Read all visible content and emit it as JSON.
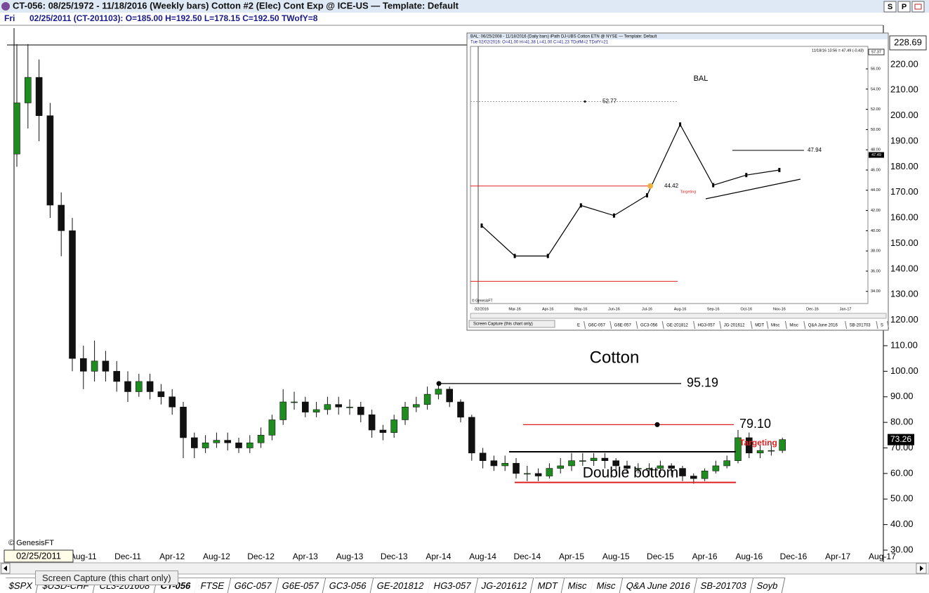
{
  "window": {
    "title": "CT-056:  08/25/1972 - 11/18/2016  (Weekly bars)  Cotton #2 (Elec) Cont Exp @ ICE-US  —  Template: Default",
    "buttons": [
      "S",
      "P"
    ]
  },
  "info_line": {
    "day": "Fri",
    "text": "02/25/2011 (CT-201103):  O=185.00  H=192.50  L=178.15  C=192.50  TWofY=8"
  },
  "chart_data": [
    {
      "type": "candlestick",
      "x": [
        "Feb-11",
        "Mar-11",
        "Apr-11",
        "May-11",
        "Jun-11",
        "Jul-11",
        "Aug-11",
        "Sep-11",
        "Oct-11",
        "Nov-11",
        "Dec-11",
        "Jan-12",
        "Feb-12",
        "Mar-12",
        "Apr-12",
        "May-12",
        "Jun-12",
        "Jul-12",
        "Aug-12",
        "Sep-12",
        "Oct-12",
        "Nov-12",
        "Dec-12",
        "Jan-13",
        "Feb-13",
        "Mar-13",
        "Apr-13",
        "May-13",
        "Jun-13",
        "Jul-13",
        "Aug-13",
        "Sep-13",
        "Oct-13",
        "Nov-13",
        "Dec-13",
        "Jan-14",
        "Feb-14",
        "Mar-14",
        "Apr-14",
        "May-14",
        "Jun-14",
        "Jul-14",
        "Aug-14",
        "Sep-14",
        "Oct-14",
        "Nov-14",
        "Dec-14",
        "Jan-15",
        "Feb-15",
        "Mar-15",
        "Apr-15",
        "May-15",
        "Jun-15",
        "Jul-15",
        "Aug-15",
        "Sep-15",
        "Oct-15",
        "Nov-15",
        "Dec-15",
        "Jan-16",
        "Feb-16",
        "Mar-16",
        "Apr-16",
        "May-16",
        "Jun-16",
        "Jul-16",
        "Aug-16",
        "Sep-16",
        "Oct-16",
        "Nov-16"
      ],
      "open": [
        185,
        205,
        215,
        200,
        165,
        155,
        105,
        100,
        104,
        100,
        96,
        92,
        96,
        92,
        90,
        86,
        74,
        70,
        72,
        73,
        72,
        70,
        72,
        75,
        81,
        88,
        88,
        84,
        85,
        87,
        86,
        86,
        83,
        77,
        76,
        81,
        86,
        87,
        91,
        93,
        88,
        82,
        68,
        65,
        63,
        64,
        60,
        60,
        59,
        62,
        63,
        65,
        65,
        66,
        65,
        63,
        62,
        62,
        62,
        63,
        62,
        59,
        58,
        61,
        63,
        65,
        74,
        68,
        69,
        69
      ],
      "high": [
        228,
        228,
        222,
        205,
        170,
        160,
        110,
        112,
        108,
        104,
        100,
        99,
        99,
        95,
        93,
        88,
        76,
        75,
        76,
        76,
        74,
        75,
        78,
        83,
        93,
        92,
        90,
        88,
        90,
        90,
        89,
        88,
        85,
        79,
        83,
        88,
        90,
        94,
        95.19,
        94,
        89,
        83,
        70,
        67,
        67,
        66,
        63,
        62,
        64,
        66,
        68,
        68,
        68,
        68,
        66,
        65,
        64,
        64,
        65,
        64,
        63,
        60,
        62,
        65,
        67,
        77,
        76,
        71,
        71,
        74
      ],
      "low": [
        180,
        195,
        190,
        160,
        145,
        100,
        93,
        96,
        96,
        92,
        88,
        90,
        89,
        87,
        83,
        66,
        66,
        68,
        70,
        69,
        68,
        68,
        70,
        73,
        79,
        85,
        82,
        82,
        83,
        83,
        83,
        80,
        74,
        73,
        74,
        79,
        84,
        85,
        89,
        86,
        80,
        65,
        62,
        61,
        61,
        58,
        57,
        57,
        58,
        60,
        61,
        63,
        63,
        62,
        60,
        60,
        60,
        59,
        60,
        59,
        57,
        56,
        57,
        60,
        62,
        64,
        66,
        66,
        67,
        68
      ],
      "close": [
        205,
        215,
        200,
        165,
        155,
        105,
        100,
        104,
        100,
        96,
        92,
        96,
        92,
        90,
        86,
        74,
        70,
        72,
        73,
        72,
        70,
        72,
        75,
        81,
        88,
        88,
        84,
        85,
        87,
        86,
        86,
        83,
        77,
        76,
        81,
        86,
        87,
        91,
        93,
        88,
        82,
        68,
        65,
        63,
        64,
        60,
        60,
        59,
        62,
        63,
        65,
        65,
        66,
        65,
        63,
        62,
        62,
        62,
        63,
        62,
        59,
        58,
        61,
        63,
        65,
        74,
        68,
        69,
        69,
        73.26
      ],
      "up_color": "#1e8c1e",
      "down_color": "#111111",
      "ylim": [
        30,
        234
      ],
      "yticks": [
        {
          "value": 30,
          "label": "30.00"
        },
        {
          "value": 40,
          "label": "40.00"
        },
        {
          "value": 50,
          "label": "50.00"
        },
        {
          "value": 60,
          "label": "60.00"
        },
        {
          "value": 70,
          "label": "70.00"
        },
        {
          "value": 80,
          "label": "80.00"
        },
        {
          "value": 90,
          "label": "90.00"
        },
        {
          "value": 100,
          "label": "100.00"
        },
        {
          "value": 110,
          "label": "110.00"
        },
        {
          "value": 120,
          "label": "120.00"
        },
        {
          "value": 130,
          "label": "130.00"
        },
        {
          "value": 140,
          "label": "140.00"
        },
        {
          "value": 150,
          "label": "150.00"
        },
        {
          "value": 160,
          "label": "160.00"
        },
        {
          "value": 170,
          "label": "170.00"
        },
        {
          "value": 180,
          "label": "180.00"
        },
        {
          "value": 190,
          "label": "190.00"
        },
        {
          "value": 200,
          "label": "200.00"
        },
        {
          "value": 210,
          "label": "210.00"
        },
        {
          "value": 220,
          "label": "220.00"
        }
      ],
      "xticks": [
        "Aug-11",
        "Dec-11",
        "Apr-12",
        "Aug-12",
        "Dec-12",
        "Apr-13",
        "Aug-13",
        "Dec-13",
        "Apr-14",
        "Aug-14",
        "Dec-14",
        "Apr-15",
        "Aug-15",
        "Dec-15",
        "Apr-16",
        "Aug-16",
        "Dec-16",
        "Apr-17",
        "Aug-17"
      ],
      "axis_top": 228.69,
      "last_price": 73.26,
      "cursor_date": "02/25/2011",
      "watermark": "© GenesisFT",
      "levels": [
        {
          "value": 95.19,
          "color": "#000000"
        },
        {
          "value": 79.1,
          "label": "79.10",
          "color": "#e02020"
        },
        {
          "value": 68.5,
          "color": "#000000"
        },
        {
          "value": 56.5,
          "color": "#e02020"
        }
      ],
      "annotations": [
        "Cotton",
        "Double bottom",
        "Targeting"
      ]
    },
    {
      "type": "line",
      "title": "BAL",
      "header": "BAL:  06/25/2008 - 11/18/2016  (Daily bars)  iPath DJ-UBS Cotton ETN @ NYSE  —  Template: Default",
      "info": "Tue  02/02/2016:  O=41.00  H=41.38  L=41.00  C=41.23  TDofM=2  TDofY=21",
      "stamp": "11/18/16 13:56 = 47.49 (-0.43)",
      "x": [
        "02/2016",
        "Mar-16",
        "Apr-16",
        "May-16",
        "Jun-16",
        "Jul-16",
        "Aug-16",
        "Sep-16",
        "Oct-16",
        "Nov-16"
      ],
      "values": [
        40.5,
        37.5,
        37.5,
        42.5,
        41.5,
        43.5,
        50.5,
        44.5,
        45.5,
        46
      ],
      "color": "#000000",
      "ylim": [
        32.8,
        57.6
      ],
      "yticks": [
        {
          "value": 34,
          "label": "34.00"
        },
        {
          "value": 36,
          "label": "36.00"
        },
        {
          "value": 38,
          "label": "38.00"
        },
        {
          "value": 40,
          "label": "40.00"
        },
        {
          "value": 42,
          "label": "42.00"
        },
        {
          "value": 44,
          "label": "44.00"
        },
        {
          "value": 46,
          "label": "46.00"
        },
        {
          "value": 48,
          "label": "48.00"
        },
        {
          "value": 50,
          "label": "50.00"
        },
        {
          "value": 52,
          "label": "52.00"
        },
        {
          "value": 54,
          "label": "54.00"
        },
        {
          "value": 56,
          "label": "56.00"
        }
      ],
      "xticks": [
        "02/2016",
        "Mar-16",
        "Apr-16",
        "May-16",
        "Jun-16",
        "Jul-16",
        "Aug-16",
        "Sep-16",
        "Oct-16",
        "Nov-16",
        "Dec-16",
        "Jan-17"
      ],
      "axis_top": 57.37,
      "last_price": 47.49,
      "watermark": "© GenesisFT",
      "levels": [
        {
          "value": 52.77,
          "color": "#999999"
        },
        {
          "value": 44.42,
          "color": "#e02020"
        },
        {
          "value": 47.94,
          "color": "#000000"
        },
        {
          "value": 35,
          "color": "#e02020"
        }
      ],
      "annotations": [
        "Targeting"
      ],
      "tabs": [
        "E",
        "G6C-057",
        "G6E-057",
        "GC3-056",
        "GE-201812",
        "HG3-057",
        "JG-201612",
        "MDT",
        "Misc",
        "Misc",
        "Q&A June 2016",
        "SB-201703",
        "S"
      ],
      "tooltip": "Screen Capture (this chart only)"
    }
  ],
  "tabs": [
    "$SPX",
    "$USD-CHF",
    "CL3-201608",
    "CT-056",
    "FTSE",
    "G6C-057",
    "G6E-057",
    "GC3-056",
    "GE-201812",
    "HG3-057",
    "JG-201612",
    "MDT",
    "Misc",
    "Misc",
    "Q&A June 2016",
    "SB-201703",
    "Soyb"
  ],
  "tooltip": "Screen Capture (this chart only)"
}
